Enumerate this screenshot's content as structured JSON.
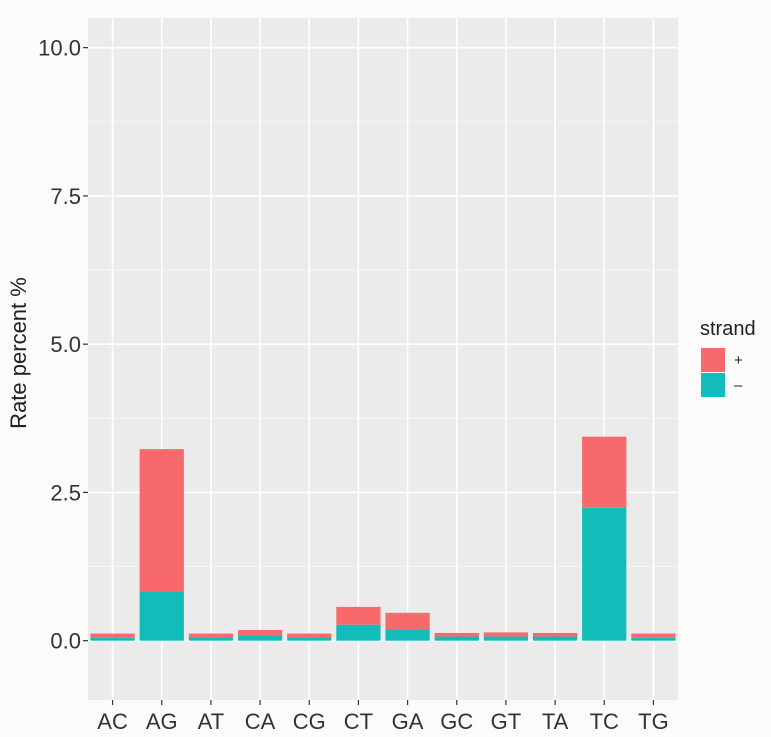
{
  "chart_data": {
    "type": "bar",
    "stacked": true,
    "title": "",
    "xlabel": "",
    "ylabel": "Rate percent %",
    "ylim": [
      -1.0,
      10.5
    ],
    "yticks": [
      0.0,
      2.5,
      5.0,
      7.5,
      10.0
    ],
    "ytick_labels": [
      "0.0",
      "2.5",
      "5.0",
      "7.5",
      "10.0"
    ],
    "grid": true,
    "legend_position": "right",
    "legend_title": "strand",
    "categories": [
      "AC",
      "AG",
      "AT",
      "CA",
      "CG",
      "CT",
      "GA",
      "GC",
      "GT",
      "TA",
      "TC",
      "TG"
    ],
    "series": [
      {
        "name": "–",
        "color": "#12bcb8",
        "values": [
          0.05,
          0.83,
          0.06,
          0.08,
          0.06,
          0.27,
          0.19,
          0.07,
          0.07,
          0.07,
          2.24,
          0.05
        ]
      },
      {
        "name": "+",
        "color": "#f8696b",
        "values": [
          0.07,
          2.4,
          0.06,
          0.1,
          0.06,
          0.3,
          0.28,
          0.06,
          0.07,
          0.06,
          1.2,
          0.07
        ]
      }
    ],
    "legend_order": [
      "+",
      "–"
    ]
  }
}
